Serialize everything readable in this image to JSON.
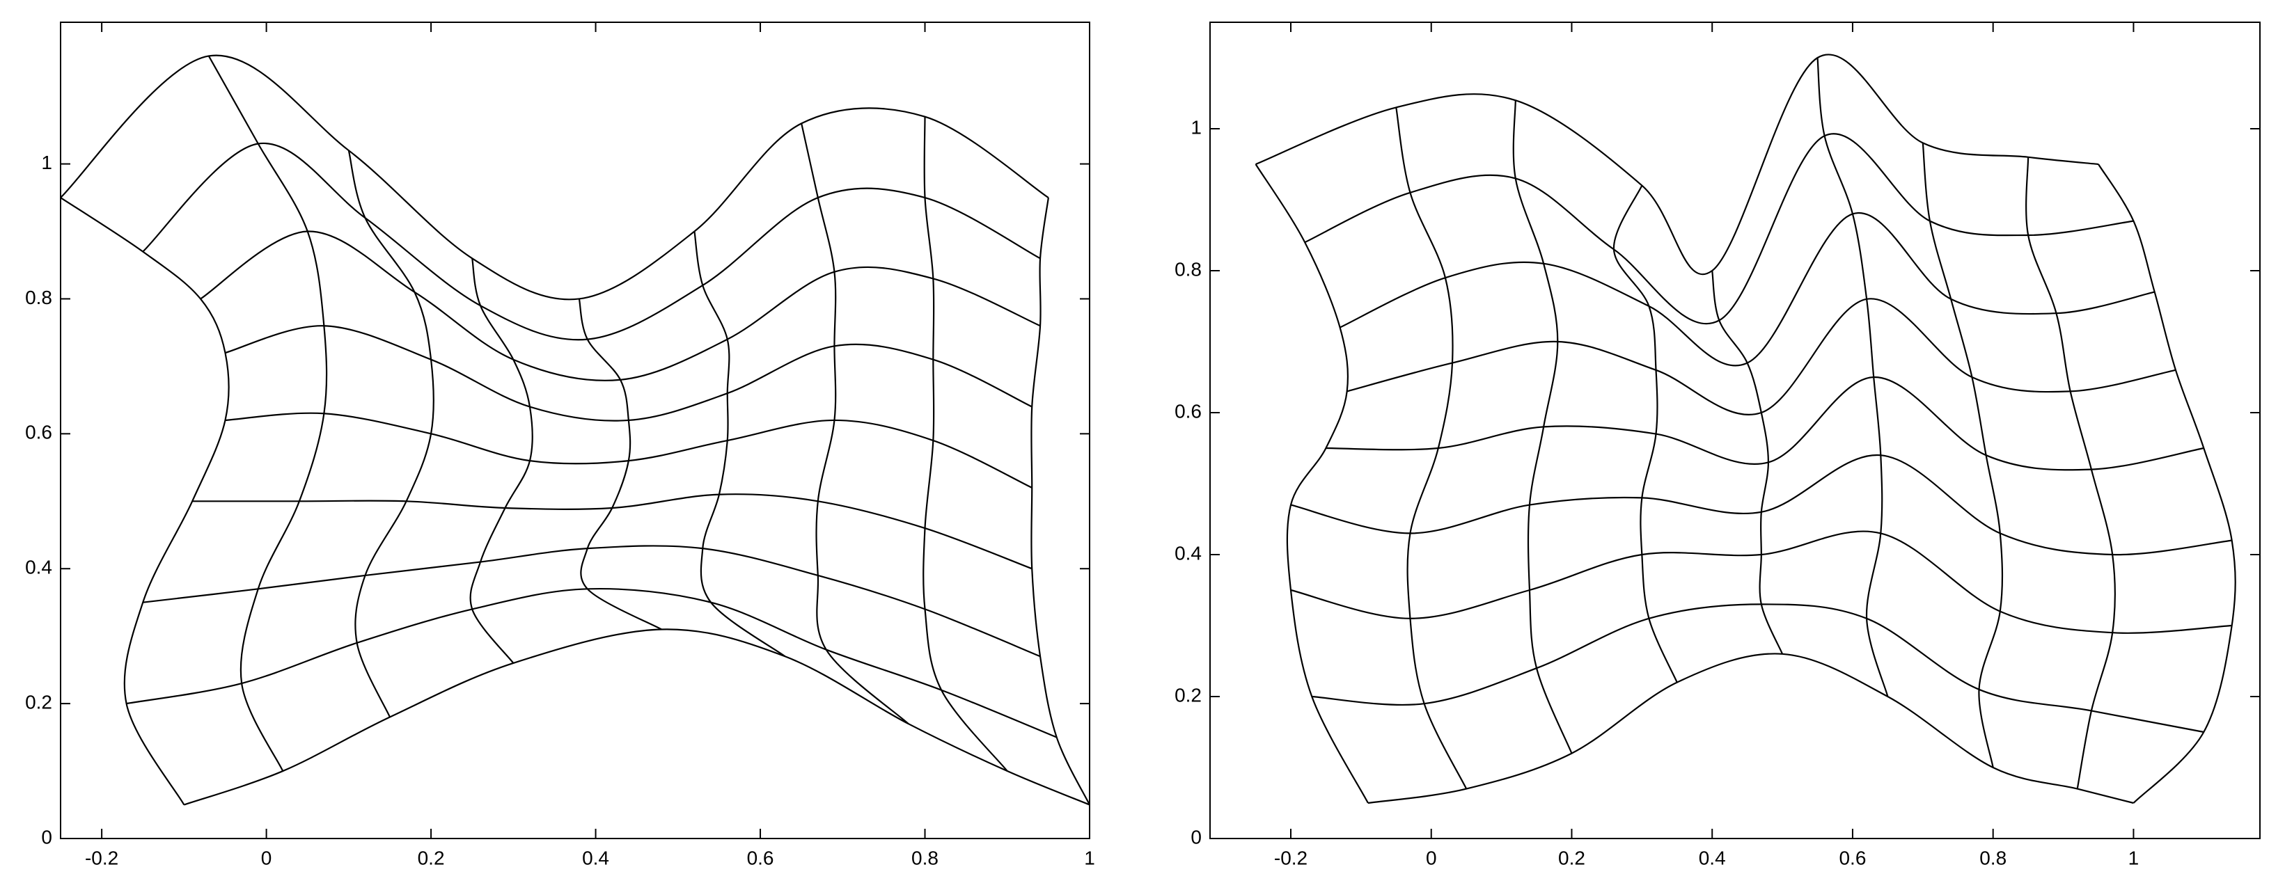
{
  "chart_data": [
    {
      "type": "mesh",
      "xlim": [
        -0.25,
        1
      ],
      "ylim": [
        0,
        1.21
      ],
      "xticks": [
        -0.2,
        0,
        0.2,
        0.4,
        0.6,
        0.8,
        1
      ],
      "yticks": [
        0,
        0.2,
        0.4,
        0.6,
        0.8,
        1
      ],
      "x": [
        [
          -0.1,
          0.02,
          0.15,
          0.3,
          0.48,
          0.63,
          0.78,
          0.9,
          1.0
        ],
        [
          -0.17,
          -0.03,
          0.11,
          0.25,
          0.39,
          0.54,
          0.68,
          0.82,
          0.96
        ],
        [
          -0.15,
          -0.01,
          0.12,
          0.26,
          0.39,
          0.53,
          0.67,
          0.8,
          0.94
        ],
        [
          -0.09,
          0.04,
          0.17,
          0.29,
          0.42,
          0.55,
          0.67,
          0.8,
          0.93
        ],
        [
          -0.05,
          0.07,
          0.2,
          0.32,
          0.44,
          0.56,
          0.69,
          0.81,
          0.93
        ],
        [
          -0.05,
          0.07,
          0.2,
          0.32,
          0.44,
          0.56,
          0.69,
          0.81,
          0.93
        ],
        [
          -0.08,
          0.05,
          0.18,
          0.3,
          0.43,
          0.56,
          0.69,
          0.81,
          0.94
        ],
        [
          -0.15,
          -0.01,
          0.12,
          0.26,
          0.39,
          0.53,
          0.67,
          0.8,
          0.94
        ],
        [
          -0.25,
          -0.07,
          0.1,
          0.25,
          0.38,
          0.52,
          0.65,
          0.8,
          0.95
        ]
      ],
      "y": [
        [
          0.05,
          0.1,
          0.18,
          0.26,
          0.31,
          0.27,
          0.17,
          0.1,
          0.05
        ],
        [
          0.2,
          0.23,
          0.29,
          0.34,
          0.37,
          0.35,
          0.28,
          0.22,
          0.15
        ],
        [
          0.35,
          0.37,
          0.39,
          0.41,
          0.43,
          0.43,
          0.39,
          0.34,
          0.27
        ],
        [
          0.5,
          0.5,
          0.5,
          0.49,
          0.49,
          0.51,
          0.5,
          0.46,
          0.4
        ],
        [
          0.62,
          0.63,
          0.6,
          0.56,
          0.56,
          0.59,
          0.62,
          0.59,
          0.52
        ],
        [
          0.72,
          0.76,
          0.71,
          0.64,
          0.62,
          0.66,
          0.73,
          0.71,
          0.64
        ],
        [
          0.8,
          0.9,
          0.81,
          0.71,
          0.68,
          0.74,
          0.84,
          0.83,
          0.76
        ],
        [
          0.87,
          1.03,
          0.92,
          0.79,
          0.74,
          0.82,
          0.95,
          0.95,
          0.86
        ],
        [
          0.95,
          1.16,
          1.02,
          0.86,
          0.8,
          0.9,
          1.06,
          1.07,
          0.95
        ]
      ]
    },
    {
      "type": "mesh",
      "xlim": [
        -0.315,
        1.18
      ],
      "ylim": [
        0,
        1.15
      ],
      "xticks": [
        -0.2,
        0,
        0.2,
        0.4,
        0.6,
        0.8,
        1
      ],
      "yticks": [
        0,
        0.2,
        0.4,
        0.6,
        0.8,
        1
      ],
      "x": [
        [
          -0.09,
          0.05,
          0.2,
          0.35,
          0.5,
          0.65,
          0.8,
          0.92,
          1.0
        ],
        [
          -0.17,
          -0.01,
          0.15,
          0.31,
          0.47,
          0.62,
          0.78,
          0.94,
          1.1
        ],
        [
          -0.2,
          -0.03,
          0.14,
          0.3,
          0.47,
          0.64,
          0.81,
          0.97,
          1.14
        ],
        [
          -0.2,
          -0.03,
          0.14,
          0.3,
          0.47,
          0.64,
          0.81,
          0.97,
          1.14
        ],
        [
          -0.15,
          0.01,
          0.16,
          0.32,
          0.48,
          0.63,
          0.79,
          0.94,
          1.1
        ],
        [
          -0.12,
          0.03,
          0.18,
          0.32,
          0.47,
          0.62,
          0.77,
          0.91,
          1.06
        ],
        [
          -0.13,
          0.02,
          0.16,
          0.31,
          0.45,
          0.6,
          0.74,
          0.89,
          1.03
        ],
        [
          -0.18,
          -0.03,
          0.12,
          0.26,
          0.41,
          0.56,
          0.71,
          0.85,
          1.0
        ],
        [
          -0.25,
          -0.05,
          0.12,
          0.3,
          0.4,
          0.55,
          0.7,
          0.85,
          0.95
        ]
      ],
      "y": [
        [
          0.05,
          0.07,
          0.12,
          0.22,
          0.26,
          0.2,
          0.1,
          0.07,
          0.05
        ],
        [
          0.2,
          0.19,
          0.24,
          0.31,
          0.33,
          0.31,
          0.21,
          0.18,
          0.15
        ],
        [
          0.35,
          0.31,
          0.35,
          0.4,
          0.4,
          0.43,
          0.32,
          0.29,
          0.3
        ],
        [
          0.47,
          0.43,
          0.47,
          0.48,
          0.46,
          0.54,
          0.43,
          0.4,
          0.42
        ],
        [
          0.55,
          0.55,
          0.58,
          0.57,
          0.53,
          0.65,
          0.54,
          0.52,
          0.55
        ],
        [
          0.63,
          0.67,
          0.7,
          0.66,
          0.6,
          0.76,
          0.65,
          0.63,
          0.66
        ],
        [
          0.72,
          0.79,
          0.81,
          0.75,
          0.67,
          0.88,
          0.76,
          0.74,
          0.77
        ],
        [
          0.84,
          0.91,
          0.93,
          0.83,
          0.73,
          0.99,
          0.87,
          0.85,
          0.87
        ],
        [
          0.95,
          1.03,
          1.04,
          0.92,
          0.8,
          1.1,
          0.98,
          0.96,
          0.95
        ]
      ]
    }
  ]
}
